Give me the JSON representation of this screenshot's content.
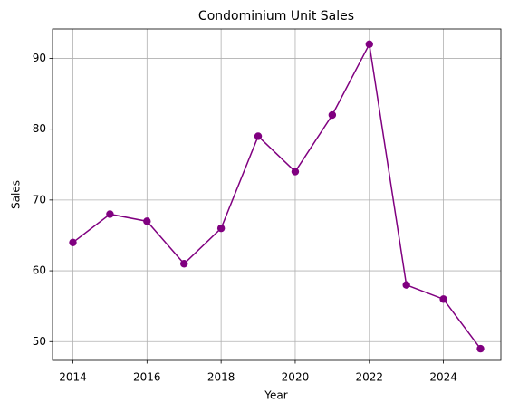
{
  "chart_data": {
    "type": "line",
    "title": "Condominium Unit Sales",
    "x_label": "Year",
    "y_label": "Sales",
    "x": [
      2014,
      2015,
      2016,
      2017,
      2018,
      2019,
      2020,
      2021,
      2022,
      2023,
      2024,
      2025
    ],
    "series": [
      {
        "name": "Sales",
        "color": "#800080",
        "values": [
          64,
          68,
          67,
          61,
          66,
          79,
          74,
          82,
          92,
          58,
          56,
          49
        ]
      }
    ],
    "xlim": [
      2013.45,
      2025.55
    ],
    "xticks": [
      2014,
      2016,
      2018,
      2020,
      2022,
      2024
    ],
    "ylim": [
      47.35,
      94.15
    ],
    "yticks": [
      50,
      60,
      70,
      80,
      90
    ],
    "grid": true
  }
}
